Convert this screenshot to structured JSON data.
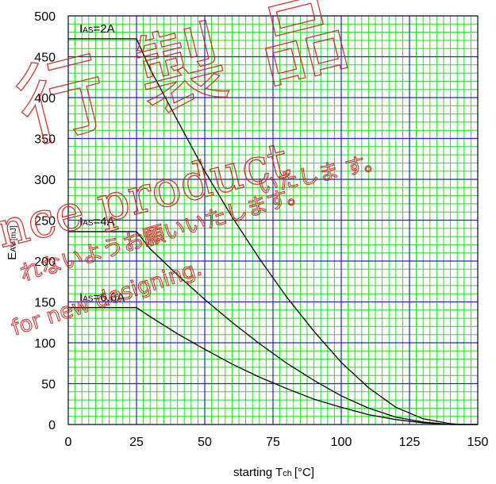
{
  "chart_data": {
    "type": "line",
    "title": "",
    "xlabel": "starting T",
    "xlabel_sub": "ch",
    "xlabel_unit": "[°C]",
    "ylabel": "E",
    "ylabel_sub": "AV",
    "ylabel_unit": "[mJ]",
    "xlim": [
      0,
      150
    ],
    "ylim": [
      0,
      500
    ],
    "x_ticks": [
      0,
      25,
      50,
      75,
      100,
      125,
      150
    ],
    "y_ticks": [
      0,
      50,
      100,
      150,
      200,
      250,
      300,
      350,
      400,
      450,
      500
    ],
    "grid": true,
    "major_grid_color": "#2020e0",
    "minor_grid_color": "#22dd22",
    "series": [
      {
        "label_main": "I",
        "label_sub": "AS",
        "label_value": "=2A",
        "x": [
          0,
          25,
          30,
          40,
          50,
          60,
          70,
          80,
          90,
          100,
          110,
          120,
          130,
          140,
          145,
          150
        ],
        "y": [
          472,
          472,
          435,
          372,
          310,
          254,
          203,
          156,
          114,
          76,
          45,
          21,
          7,
          1,
          0,
          0
        ]
      },
      {
        "label_main": "I",
        "label_sub": "AS",
        "label_value": "=4A",
        "x": [
          0,
          25,
          30,
          40,
          50,
          60,
          70,
          80,
          90,
          100,
          110,
          120,
          130,
          140,
          145,
          150
        ],
        "y": [
          236,
          236,
          215,
          183,
          153,
          125,
          99,
          75,
          54,
          35,
          20,
          9,
          3,
          0,
          0,
          0
        ]
      },
      {
        "label_main": "I",
        "label_sub": "AS",
        "label_value": "=6.6A",
        "x": [
          0,
          25,
          30,
          40,
          50,
          60,
          70,
          80,
          90,
          100,
          110,
          120,
          130,
          140,
          145,
          150
        ],
        "y": [
          143,
          143,
          132,
          111,
          92,
          74,
          58,
          44,
          31,
          21,
          12,
          6,
          2,
          0,
          0,
          0
        ]
      }
    ]
  },
  "watermark": {
    "kanji_line": "行 製 品",
    "english_line_1": "nce product",
    "japanese_line": "いたしま す。",
    "japanese_line_2": "れないようお願いいたします。",
    "english_line_2": "for new designing.",
    "color": "#c8241c"
  }
}
